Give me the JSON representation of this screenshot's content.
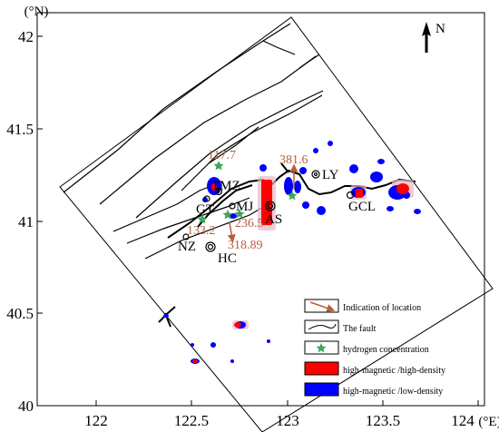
{
  "axes": {
    "y_unit": "(°N)",
    "x_unit": "(°E)",
    "y_ticks": [
      "42",
      "41.5",
      "41",
      "40.5",
      "40"
    ],
    "x_ticks": [
      "122",
      "122.5",
      "123",
      "123.5",
      "124"
    ]
  },
  "north_label": "N",
  "places": {
    "tmz": "TMZ",
    "gt": "GT",
    "mj": "MJ",
    "nz": "NZ",
    "hc": "HC",
    "as": "AS",
    "ly": "LY",
    "gcl": "GCL"
  },
  "hydrogen_values": {
    "v117": "117.7",
    "v381": "381.6",
    "v133": "133.2",
    "v236": "236.5",
    "v318": "318.89"
  },
  "legend": {
    "location": "Indication of location",
    "fault": "The fault",
    "hydrogen": "hydrogen concentration",
    "red": "high-magnetic /high-density",
    "blue": "high-magnetic /low-density"
  },
  "colors": {
    "frame": "#000000",
    "fault": "#000000",
    "arrow": "#b5603f",
    "value_text": "#b5603f",
    "star": "#3fa55a",
    "high_density": "#ff0000",
    "low_density": "#0000ff",
    "anomaly_halo": "#e8b8c8"
  }
}
